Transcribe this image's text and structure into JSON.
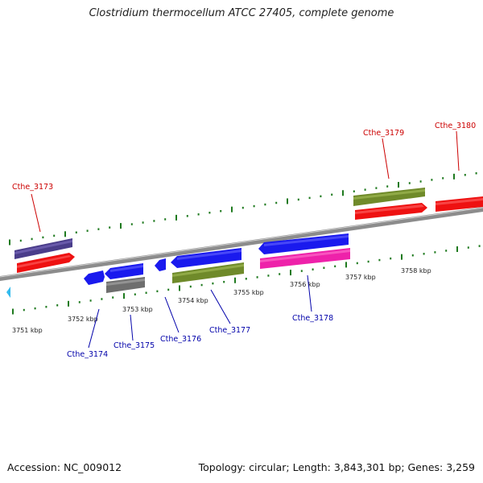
{
  "title": "Clostridium thermocellum ATCC 27405, complete genome",
  "footer": {
    "accession": "Accession: NC_009012",
    "topology": "Topology: circular; Length: 3,843,301 bp; Genes: 3,259"
  },
  "colors": {
    "background": "#ffffff",
    "backbone": "#8c8c8c",
    "tick": "#1f7a1f",
    "label_top": "#cc0000",
    "label_bottom": "#0000aa",
    "marker": "#33bbee"
  },
  "kbp_labels": [
    "3751 kbp",
    "3752 kbp",
    "3753 kbp",
    "3754 kbp",
    "3755 kbp",
    "3756 kbp",
    "3757 kbp",
    "3758 kbp"
  ],
  "gene_labels": {
    "top": [
      "Cthe_3173",
      "Cthe_3179",
      "Cthe_3180"
    ],
    "bottom": [
      "Cthe_3174",
      "Cthe_3175",
      "Cthe_3176",
      "Cthe_3177",
      "Cthe_3178"
    ]
  },
  "marker_icon": "triangle-left-icon"
}
